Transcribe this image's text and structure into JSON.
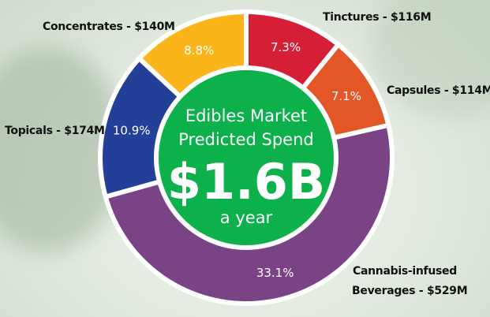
{
  "chart_data": {
    "type": "pie",
    "style": "donut",
    "center": {
      "line1": "Edibles Market",
      "line2": "Predicted Spend",
      "value": "$1.6B",
      "line3": "a year",
      "color": "#0db14b"
    },
    "slices": [
      {
        "label": "Tinctures - $116M",
        "category": "Tinctures",
        "amount_musd": 116,
        "percent": 7.3,
        "percent_label": "7.3%",
        "color": "#d51f36"
      },
      {
        "label": "Capsules - $114M",
        "category": "Capsules",
        "amount_musd": 114,
        "percent": 7.1,
        "percent_label": "7.1%",
        "color": "#e25725"
      },
      {
        "label_line1": "Cannabis-infused",
        "label_line2": "Beverages - $529M",
        "category": "Cannabis-infused Beverages",
        "amount_musd": 529,
        "percent": 33.1,
        "percent_label": "33.1%",
        "color": "#7a4386"
      },
      {
        "label": "Topicals - $174M",
        "category": "Topicals",
        "amount_musd": 174,
        "percent": 10.9,
        "percent_label": "10.9%",
        "color": "#243f98"
      },
      {
        "label": "Concentrates - $140M",
        "category": "Concentrates",
        "amount_musd": 140,
        "percent": 8.8,
        "percent_label": "8.8%",
        "color": "#fbb41a"
      }
    ]
  }
}
